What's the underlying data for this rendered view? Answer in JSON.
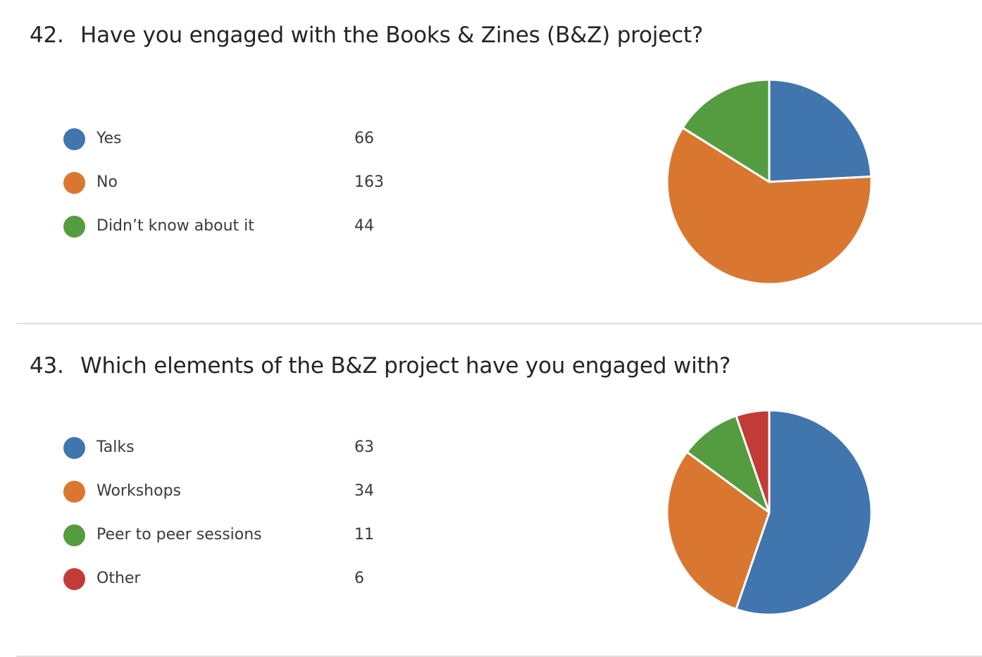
{
  "questions": [
    {
      "number": "42.",
      "title": "Have you engaged with the Books & Zines (B&Z) project?",
      "options": [
        {
          "label": "Yes",
          "count": "66",
          "color": "#4075ae"
        },
        {
          "label": "No",
          "count": "163",
          "color": "#d97731"
        },
        {
          "label": "Didn’t know about it",
          "count": "44",
          "color": "#559c41"
        }
      ]
    },
    {
      "number": "43.",
      "title": "Which elements of the B&Z project have you engaged with?",
      "options": [
        {
          "label": "Talks",
          "count": "63",
          "color": "#4075ae"
        },
        {
          "label": "Workshops",
          "count": "34",
          "color": "#d97731"
        },
        {
          "label": "Peer to peer sessions",
          "count": "11",
          "color": "#559c41"
        },
        {
          "label": "Other",
          "count": "6",
          "color": "#c23b37"
        }
      ]
    }
  ],
  "chart_data": [
    {
      "type": "pie",
      "title": "Have you engaged with the Books & Zines (B&Z) project?",
      "categories": [
        "Yes",
        "No",
        "Didn’t know about it"
      ],
      "values": [
        66,
        163,
        44
      ],
      "colors": [
        "#4075ae",
        "#d97731",
        "#559c41"
      ],
      "legend": "left"
    },
    {
      "type": "pie",
      "title": "Which elements of the B&Z project have you engaged with?",
      "categories": [
        "Talks",
        "Workshops",
        "Peer to peer sessions",
        "Other"
      ],
      "values": [
        63,
        34,
        11,
        6
      ],
      "colors": [
        "#4075ae",
        "#d97731",
        "#559c41",
        "#c23b37"
      ],
      "legend": "left"
    }
  ]
}
